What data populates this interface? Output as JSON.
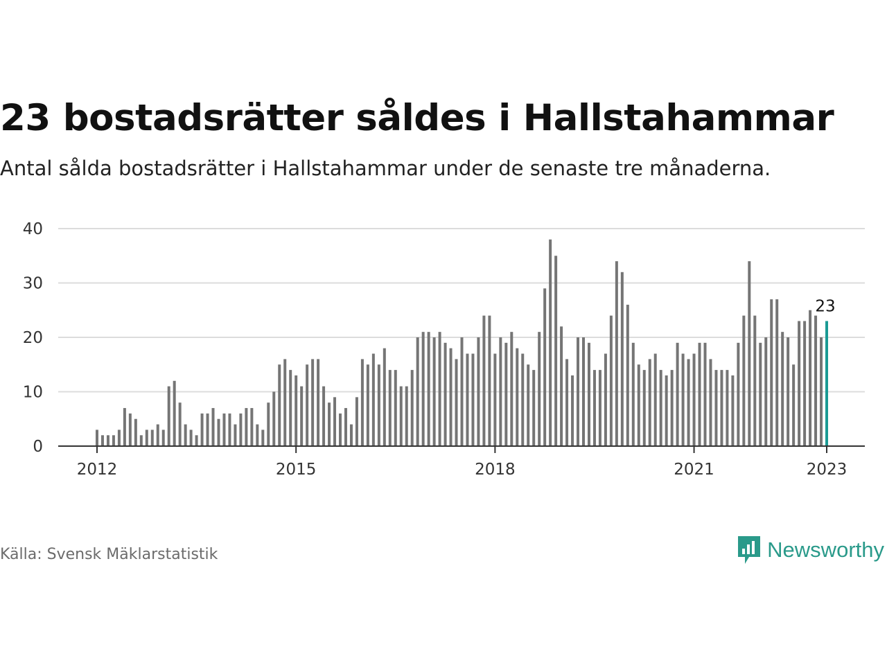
{
  "title": "23 bostadsrätter såldes i Hallstahammar",
  "subtitle": "Antal sålda bostadsrätter i Hallstahammar under de senaste tre månaderna.",
  "source": "Källa: Svensk Mäklarstatistik",
  "brand": {
    "name": "Newsworthy",
    "icon": "newsworthy-logo-icon",
    "color": "#2a9a8a"
  },
  "chart_data": {
    "type": "bar",
    "start_year": 2012,
    "start_month": 1,
    "values": [
      3,
      2,
      2,
      2,
      3,
      7,
      6,
      5,
      2,
      3,
      3,
      4,
      3,
      11,
      12,
      8,
      4,
      3,
      2,
      6,
      6,
      7,
      5,
      6,
      6,
      4,
      6,
      7,
      7,
      4,
      3,
      8,
      10,
      15,
      16,
      14,
      13,
      11,
      15,
      16,
      16,
      11,
      8,
      9,
      6,
      7,
      4,
      9,
      16,
      15,
      17,
      15,
      18,
      14,
      14,
      11,
      11,
      14,
      20,
      21,
      21,
      20,
      21,
      19,
      18,
      16,
      20,
      17,
      17,
      20,
      24,
      24,
      17,
      20,
      19,
      21,
      18,
      17,
      15,
      14,
      21,
      29,
      38,
      35,
      22,
      16,
      13,
      20,
      20,
      19,
      14,
      14,
      17,
      24,
      34,
      32,
      26,
      19,
      15,
      14,
      16,
      17,
      14,
      13,
      14,
      19,
      17,
      16,
      17,
      19,
      19,
      16,
      14,
      14,
      14,
      13,
      19,
      24,
      34,
      24,
      19,
      20,
      27,
      27,
      21,
      20,
      15,
      23,
      23,
      25,
      24,
      20,
      23
    ],
    "ylim": [
      0,
      40
    ],
    "yticks": [
      0,
      10,
      20,
      30,
      40
    ],
    "xticks": [
      "2012",
      "2015",
      "2018",
      "2021",
      "2023"
    ],
    "highlight_label": "23",
    "colors": {
      "bar": "#757575",
      "highlight": "#1a9a94",
      "grid": "#dcdcdc",
      "axis": "#333333"
    },
    "grid": true,
    "legend": "none"
  }
}
